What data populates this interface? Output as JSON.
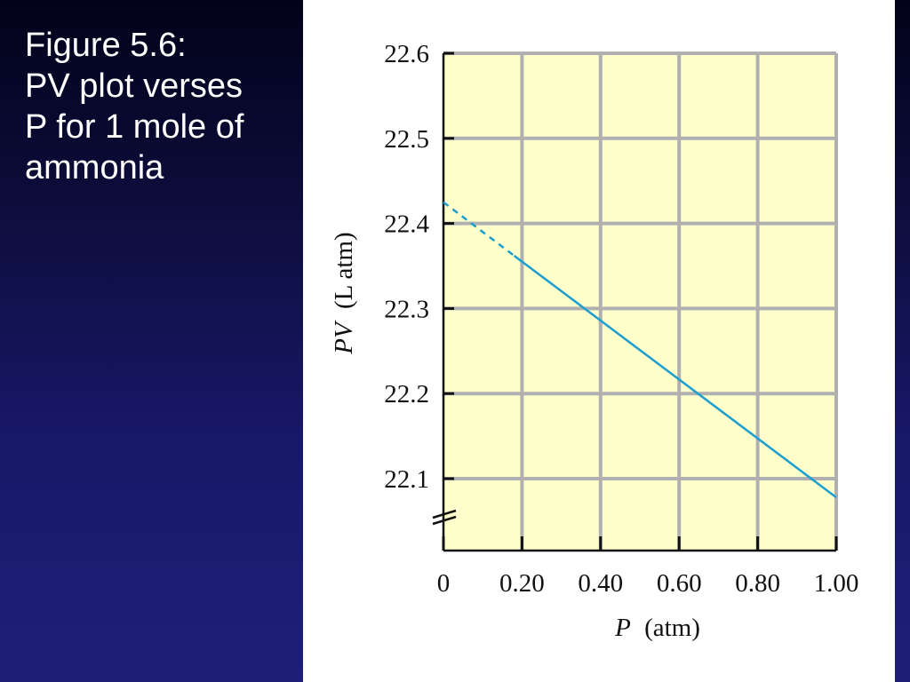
{
  "caption": {
    "lines": [
      "Figure 5.6:",
      "PV plot verses",
      "P for 1 mole of",
      "ammonia"
    ]
  },
  "colors": {
    "background_top": "#02021a",
    "background_bottom": "#1f1f78",
    "plot_area": "#ffffcc",
    "grid": "#b0b0b0",
    "line": "#1a9fd0",
    "axis": "#111111"
  },
  "chart_data": {
    "type": "line",
    "xlabel_var": "P",
    "xlabel_unit": "(atm)",
    "ylabel_var": "PV",
    "ylabel_unit": "(L atm)",
    "xlim": [
      0,
      1.0
    ],
    "ylim": [
      22.0,
      22.6
    ],
    "x_ticks": [
      0,
      0.2,
      0.4,
      0.6,
      0.8,
      1.0
    ],
    "x_tick_labels": [
      "0",
      "0.20",
      "0.40",
      "0.60",
      "0.80",
      "1.00"
    ],
    "y_ticks": [
      22.1,
      22.2,
      22.3,
      22.4,
      22.5,
      22.6
    ],
    "y_tick_labels": [
      "22.1",
      "22.2",
      "22.3",
      "22.4",
      "22.5",
      "22.6"
    ],
    "y_axis_break": true,
    "grid": true,
    "series": [
      {
        "style": "solid",
        "x": [
          0.18,
          1.0
        ],
        "y": [
          22.362,
          22.078
        ]
      },
      {
        "style": "dashed",
        "x": [
          0,
          0.18
        ],
        "y": [
          22.425,
          22.362
        ]
      }
    ]
  }
}
